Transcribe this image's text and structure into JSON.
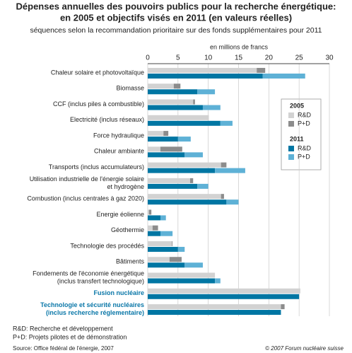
{
  "chart_data": {
    "type": "grouped-stacked-barh",
    "title": [
      "Dépenses annuelles des pouvoirs publics pour la recherche énergétique:",
      "en 2005 et objectifs visés en 2011 (en valeurs réelles)"
    ],
    "subtitle": "séquences selon la recommandation prioritaire sur des fonds supplémentaires pour 2011",
    "x_label": "en millions de francs",
    "xlim": [
      0,
      30
    ],
    "xticks": [
      0,
      5,
      10,
      15,
      20,
      25,
      30
    ],
    "grid": true,
    "categories": [
      [
        "Chaleur solaire et photovoltaïque"
      ],
      [
        "Biomasse"
      ],
      [
        "CCF (inclus piles à combustible)"
      ],
      [
        "Electricité (inclus réseaux)"
      ],
      [
        "Force hydraulique"
      ],
      [
        "Chaleur ambiante"
      ],
      [
        "Transports (inclus accumulateurs)"
      ],
      [
        "Utilisation industrielle de l'énergie solaire",
        "et hydrogène"
      ],
      [
        "Combustion (inclus centrales à gaz 2020)"
      ],
      [
        "Energie éolienne"
      ],
      [
        "Géothermie"
      ],
      [
        "Technologie des procédés"
      ],
      [
        "Bâtiments"
      ],
      [
        "Fondements de l'économie énergétique",
        "(inclus transfert technologique)"
      ],
      [
        "Fusion nucléaire"
      ],
      [
        "Technologie et sécurité nucléaires",
        "(inclus recherche réglementaire)"
      ]
    ],
    "highlighted_categories": [
      14,
      15
    ],
    "highlight_color": "#0a77a8",
    "groups": [
      {
        "label": "2005",
        "series": [
          {
            "name": "R&D",
            "color": "#d2d2d2",
            "values": [
              18,
              4.3,
              7.5,
              10.1,
              2.6,
              2.1,
              12.1,
              7,
              12.1,
              0.2,
              0.8,
              4,
              3.6,
              11.1,
              25.2,
              22
            ]
          },
          {
            "name": "P+D",
            "color": "#8c8c8c",
            "values": [
              1.4,
              1.1,
              0.3,
              0,
              0.8,
              3.6,
              0.9,
              0.5,
              0.5,
              0.4,
              0.9,
              0.1,
              2,
              0,
              0,
              0.6
            ]
          }
        ]
      },
      {
        "label": "2011",
        "series": [
          {
            "name": "R&D",
            "color": "#0076a3",
            "values": [
              19,
              8.2,
              9.1,
              12,
              5,
              6.1,
              11.1,
              8.2,
              13,
              2.1,
              2.1,
              5,
              6.1,
              11.1,
              25,
              22
            ]
          },
          {
            "name": "P+D",
            "color": "#5eb1d6",
            "values": [
              7,
              2.9,
              2.9,
              2,
              2.1,
              3,
              5,
              1.8,
              2,
              0.9,
              2,
              1.1,
              3,
              0.9,
              0,
              0
            ]
          }
        ]
      }
    ],
    "notes": [
      "R&D: Recherche et développement",
      "P+D: Projets pilotes et de démonstration"
    ],
    "source": "Source: Office fédéral de l'énergie, 2007",
    "copyright": "© 2007 Forum nucléaire suisse"
  }
}
